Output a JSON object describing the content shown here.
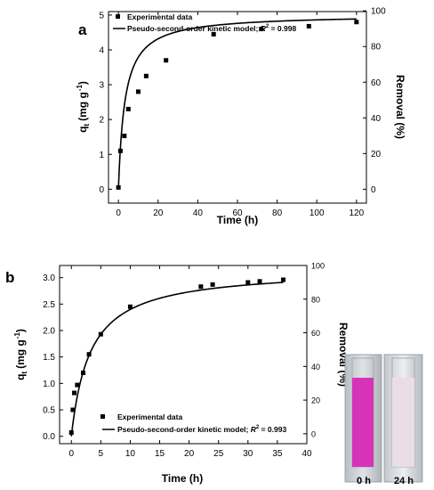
{
  "chart_data": [
    {
      "type": "scatter",
      "panel_label": "a",
      "xlabel": "Time (h)",
      "ylabel": "q",
      "ylabel_sub": "t",
      "ylabel_tail": "(mg g",
      "ylabel_sup": "-1",
      "ylabel_close": ")",
      "y2label": "Removal (%)",
      "xlim": [
        -5,
        125
      ],
      "ylim": [
        -0.4,
        5.1
      ],
      "y2lim": [
        -7.8,
        99.6
      ],
      "x_ticks": [
        0,
        20,
        40,
        60,
        80,
        100,
        120
      ],
      "y_ticks": [
        0,
        1,
        2,
        3,
        4,
        5
      ],
      "y2_ticks": [
        0,
        20,
        40,
        60,
        80,
        100
      ],
      "legend_position": "top-left",
      "legend": {
        "points": "Experimental data",
        "line": "Pseudo-second-order kinetic model; ",
        "r2_label": "R",
        "r2_sup": "2",
        "r2_value": " = 0.998"
      },
      "series": [
        {
          "name": "Experimental data",
          "kind": "points",
          "x": [
            0,
            1,
            3,
            5,
            10,
            14,
            24,
            48,
            72,
            96,
            120
          ],
          "y": [
            0.05,
            1.1,
            1.53,
            2.3,
            2.8,
            3.25,
            3.7,
            4.45,
            4.6,
            4.68,
            4.8
          ]
        },
        {
          "name": "Pseudo-second-order kinetic model; R2 = 0.998",
          "kind": "line",
          "model": {
            "qe": 5.02,
            "k": 0.0612
          }
        }
      ]
    },
    {
      "type": "scatter",
      "panel_label": "b",
      "xlabel": "Time (h)",
      "ylabel": "q",
      "ylabel_sub": "t",
      "ylabel_tail": "(mg g",
      "ylabel_sup": "-1",
      "ylabel_close": ")",
      "y2label": "Removal (%)",
      "xlim": [
        -2,
        40
      ],
      "ylim": [
        -0.14,
        3.23
      ],
      "y2lim": [
        -5.9,
        100.0
      ],
      "x_ticks": [
        0,
        5,
        10,
        15,
        20,
        25,
        30,
        35,
        40
      ],
      "y_ticks": [
        0.0,
        0.5,
        1.0,
        1.5,
        2.0,
        2.5,
        3.0
      ],
      "y2_ticks": [
        0,
        20,
        40,
        60,
        80,
        100
      ],
      "legend_position": "bottom-left",
      "legend": {
        "points": "Experimental data",
        "line": "Pseudo-second-order kinetic model; ",
        "r2_label": "R",
        "r2_sup": "2",
        "r2_value": " = 0.993"
      },
      "series": [
        {
          "name": "Experimental data",
          "kind": "points",
          "x": [
            0,
            0.25,
            0.5,
            1,
            2,
            3,
            5,
            10,
            22,
            24,
            30,
            32,
            36
          ],
          "y": [
            0.07,
            0.5,
            0.82,
            0.97,
            1.2,
            1.55,
            1.93,
            2.45,
            2.83,
            2.87,
            2.91,
            2.93,
            2.96
          ]
        },
        {
          "name": "Pseudo-second-order kinetic model; R2 = 0.993",
          "kind": "line",
          "model": {
            "qe": 3.17,
            "k": 0.098
          }
        }
      ]
    }
  ],
  "photo": {
    "label_left": "0 h",
    "label_right": "24 h",
    "solution_color_left": "#d733b8",
    "solution_color_right": "#eadde6"
  }
}
